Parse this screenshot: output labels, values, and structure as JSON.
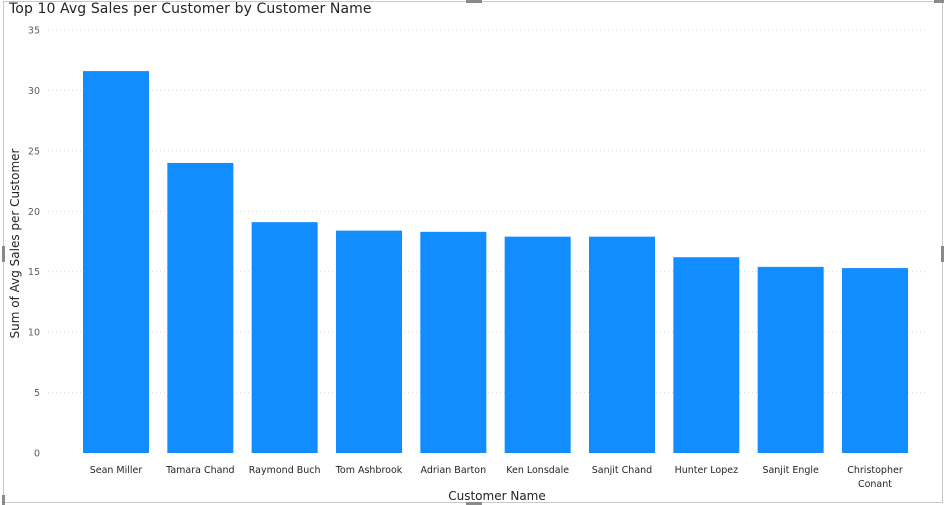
{
  "chart_data": {
    "type": "bar",
    "title": "Top 10 Avg Sales per Customer by Customer Name",
    "xlabel": "Customer Name",
    "ylabel": "Sum of Avg Sales per Customer",
    "categories": [
      "Sean Miller",
      "Tamara Chand",
      "Raymond Buch",
      "Tom Ashbrook",
      "Adrian Barton",
      "Ken Lonsdale",
      "Sanjit Chand",
      "Hunter Lopez",
      "Sanjit Engle",
      "Christopher Conant"
    ],
    "category_lines": [
      [
        "Sean Miller"
      ],
      [
        "Tamara Chand"
      ],
      [
        "Raymond Buch"
      ],
      [
        "Tom Ashbrook"
      ],
      [
        "Adrian Barton"
      ],
      [
        "Ken Lonsdale"
      ],
      [
        "Sanjit Chand"
      ],
      [
        "Hunter Lopez"
      ],
      [
        "Sanjit Engle"
      ],
      [
        "Christopher",
        "Conant"
      ]
    ],
    "values": [
      31.6,
      24.0,
      19.1,
      18.4,
      18.3,
      17.9,
      17.9,
      16.2,
      15.4,
      15.3
    ],
    "ylim": [
      0,
      35
    ],
    "yticks": [
      0,
      5,
      10,
      15,
      20,
      25,
      30,
      35
    ],
    "grid": true,
    "bar_color": "#118dff",
    "grid_color": "#d9d9d9"
  }
}
